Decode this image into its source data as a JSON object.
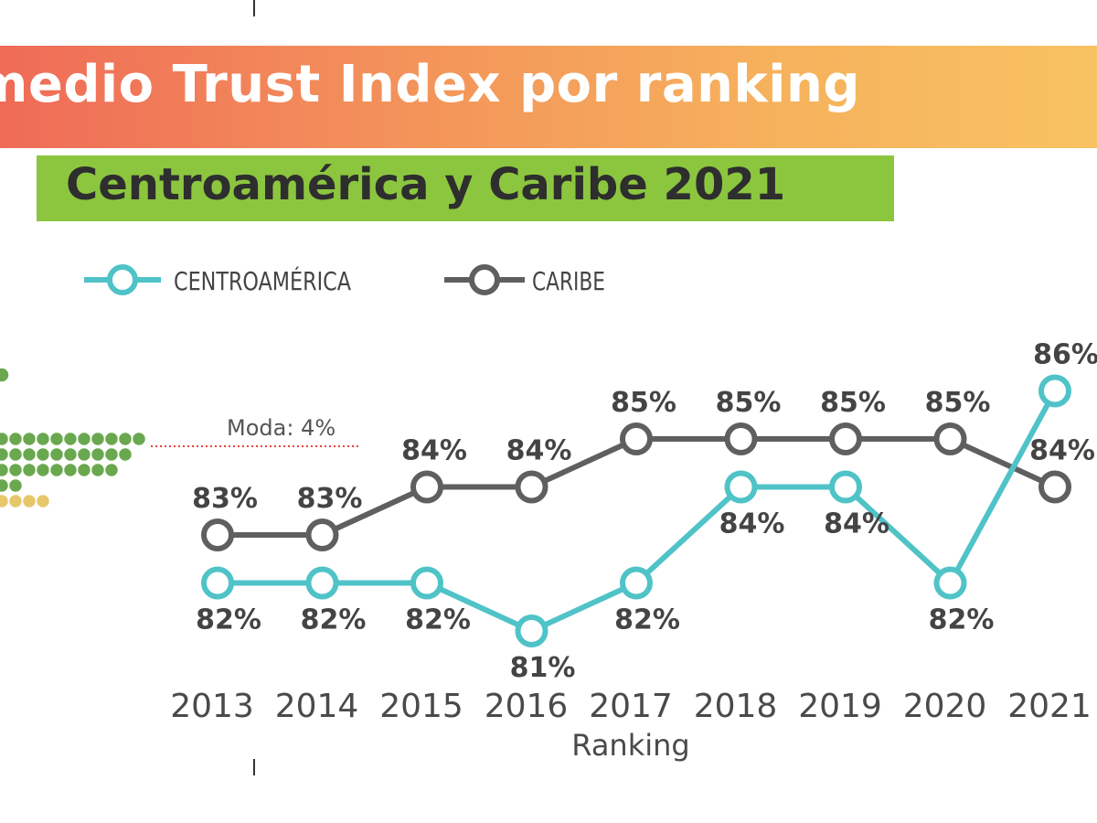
{
  "title": "medio Trust Index por ranking",
  "subtitle": "Centroamérica y Caribe 2021",
  "chart_data": {
    "type": "line",
    "xlabel": "Ranking",
    "ylabel": "",
    "categories": [
      "2013",
      "2014",
      "2015",
      "2016",
      "2017",
      "2018",
      "2019",
      "2020",
      "2021"
    ],
    "ylim": [
      80,
      87
    ],
    "legend_position": "top-left",
    "series": [
      {
        "name": "CENTROAMÉRICA",
        "color": "#4fc3c7",
        "values": [
          82,
          82,
          82,
          81,
          82,
          84,
          84,
          82,
          86
        ]
      },
      {
        "name": "CARIBE",
        "color": "#5f5f5f",
        "values": [
          83,
          83,
          84,
          84,
          85,
          85,
          85,
          85,
          84
        ]
      }
    ],
    "data_labels": [
      [
        "82%",
        "82%",
        "82%",
        "81%",
        "82%",
        "84%",
        "84%",
        "82%",
        "86%"
      ],
      [
        "83%",
        "83%",
        "84%",
        "84%",
        "85%",
        "85%",
        "85%",
        "85%",
        "84%"
      ]
    ],
    "moda_label": "Moda: 4%"
  }
}
